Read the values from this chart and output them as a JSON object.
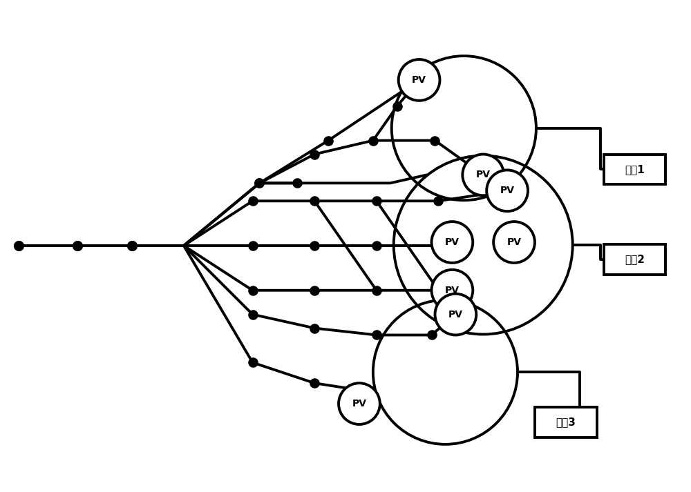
{
  "bg_color": "#ffffff",
  "line_color": "#000000",
  "line_width": 2.8,
  "dot_size": 90,
  "dot_color": "#000000",
  "pv_label": "PV",
  "load_labels": [
    "负荽1",
    "负荽2",
    "负荽3"
  ],
  "figsize": [
    10.0,
    7.13
  ],
  "dpi": 100
}
